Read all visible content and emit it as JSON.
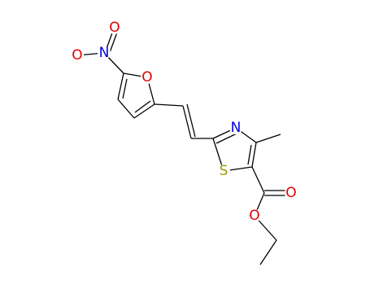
{
  "atoms": [
    {
      "label": "O"
    },
    {
      "label": "N"
    },
    {
      "label": "O"
    },
    {
      "label": "O"
    },
    {
      "label": "N"
    },
    {
      "label": "S"
    },
    {
      "label": "O"
    },
    {
      "label": "O"
    }
  ]
}
